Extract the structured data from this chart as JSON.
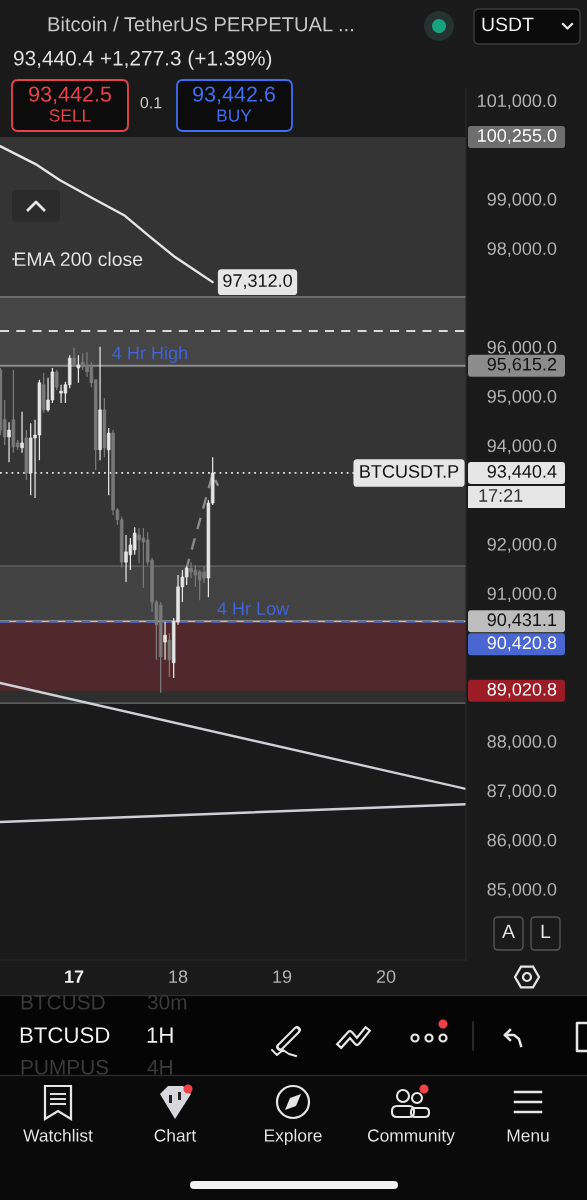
{
  "chart_data": {
    "type": "candlestick",
    "title": "Bitcoin / TetherUS PERPETUAL ...",
    "x": [
      16.292,
      16.333,
      16.375,
      16.417,
      16.458,
      16.5,
      16.542,
      16.583,
      16.625,
      16.667,
      16.708,
      16.75,
      16.792,
      16.833,
      16.875,
      16.917,
      16.958,
      17.0,
      17.042,
      17.083,
      17.125,
      17.167,
      17.208,
      17.25,
      17.292,
      17.333,
      17.375,
      17.417,
      17.458,
      17.5,
      17.542,
      17.583,
      17.625,
      17.667,
      17.708,
      17.75,
      17.792,
      17.833,
      17.875,
      17.917,
      17.958,
      18.0,
      18.042,
      18.083,
      18.125,
      18.167,
      18.208,
      18.25,
      18.292,
      18.333
    ],
    "ohlc": [
      [
        95530,
        95570,
        94210,
        94310
      ],
      [
        94520,
        94920,
        94010,
        94170
      ],
      [
        94170,
        94470,
        93660,
        94310
      ],
      [
        94520,
        95530,
        93850,
        93970
      ],
      [
        94050,
        94110,
        93910,
        93970
      ],
      [
        93950,
        94680,
        93850,
        94050
      ],
      [
        94150,
        94310,
        93300,
        93440
      ],
      [
        93440,
        94450,
        92990,
        94150
      ],
      [
        94150,
        94520,
        92930,
        94210
      ],
      [
        94210,
        95330,
        93700,
        95270
      ],
      [
        95230,
        95470,
        94660,
        94720
      ],
      [
        94720,
        95370,
        94680,
        94920
      ],
      [
        94920,
        95570,
        94860,
        95490
      ],
      [
        95490,
        95530,
        95120,
        95180
      ],
      [
        95060,
        95230,
        94860,
        95100
      ],
      [
        95060,
        95290,
        94860,
        95230
      ],
      [
        95230,
        95830,
        95160,
        95770
      ],
      [
        95770,
        95980,
        95590,
        95630
      ],
      [
        95570,
        95830,
        95270,
        95630
      ],
      [
        95690,
        95870,
        95530,
        95590
      ],
      [
        95630,
        95890,
        95390,
        95490
      ],
      [
        95590,
        95690,
        95180,
        95270
      ],
      [
        95330,
        95330,
        93500,
        93910
      ],
      [
        93910,
        96000,
        93700,
        94720
      ],
      [
        94720,
        94960,
        93760,
        93950
      ],
      [
        93910,
        94350,
        92990,
        94250
      ],
      [
        94250,
        94310,
        92590,
        92690
      ],
      [
        92690,
        92730,
        92390,
        92490
      ],
      [
        92490,
        92550,
        91530,
        91630
      ],
      [
        91630,
        92180,
        91230,
        91840
      ],
      [
        91780,
        92120,
        91470,
        91980
      ],
      [
        91880,
        92340,
        91780,
        92220
      ],
      [
        92180,
        92320,
        91610,
        92080
      ],
      [
        92120,
        92320,
        91110,
        92040
      ],
      [
        92080,
        92240,
        91570,
        91630
      ],
      [
        91670,
        91720,
        90620,
        90820
      ],
      [
        90820,
        90860,
        89650,
        90360
      ],
      [
        90760,
        90820,
        88980,
        89710
      ],
      [
        90010,
        90420,
        89650,
        90150
      ],
      [
        90050,
        90190,
        89300,
        89650
      ],
      [
        89590,
        90500,
        89280,
        90420
      ],
      [
        90420,
        91370,
        90360,
        91130
      ],
      [
        91130,
        91470,
        90820,
        91330
      ],
      [
        91330,
        91550,
        91170,
        91510
      ],
      [
        91510,
        91630,
        91310,
        91430
      ],
      [
        91470,
        91570,
        91130,
        91370
      ],
      [
        91430,
        91470,
        90860,
        91270
      ],
      [
        91430,
        91550,
        91210,
        91310
      ],
      [
        91310,
        92890,
        90920,
        92830
      ],
      [
        92830,
        93760,
        92790,
        93440.4
      ]
    ],
    "colors": [
      "#7a7a7a",
      "#7a7a7a",
      "#e6e6e6",
      "#7a7a7a",
      "#7a7a7a",
      "#e6e6e6",
      "#7a7a7a",
      "#e6e6e6",
      "#e6e6e6",
      "#e6e6e6",
      "#7a7a7a",
      "#e6e6e6",
      "#e6e6e6",
      "#7a7a7a",
      "#e6e6e6",
      "#e6e6e6",
      "#e6e6e6",
      "#7a7a7a",
      "#e6e6e6",
      "#7a7a7a",
      "#7a7a7a",
      "#7a7a7a",
      "#7a7a7a",
      "#e6e6e6",
      "#7a7a7a",
      "#e6e6e6",
      "#7a7a7a",
      "#7a7a7a",
      "#7a7a7a",
      "#e6e6e6",
      "#e6e6e6",
      "#e6e6e6",
      "#7a7a7a",
      "#7a7a7a",
      "#7a7a7a",
      "#7a7a7a",
      "#7a7a7a",
      "#7a7a7a",
      "#e6e6e6",
      "#7a7a7a",
      "#e6e6e6",
      "#e6e6e6",
      "#e6e6e6",
      "#e6e6e6",
      "#7a7a7a",
      "#7a7a7a",
      "#7a7a7a",
      "#7a7a7a",
      "#e6e6e6",
      "#e6e6e6"
    ],
    "series": [
      {
        "type": "line",
        "name": "EMA 200 close",
        "color": "#e6e6e6",
        "x": [
          16.288,
          16.644,
          16.865,
          17.192,
          17.481,
          17.731,
          17.971,
          18.212,
          18.333
        ],
        "values": [
          100070,
          99690,
          99380,
          99000,
          98670,
          98230,
          97820,
          97480,
          97312
        ],
        "value_labels": [
          null,
          null,
          null,
          null,
          null,
          null,
          null,
          null,
          "97,312.0"
        ]
      },
      {
        "type": "line",
        "color": "#cfcfd6",
        "x": [
          16.288,
          20.769
        ],
        "values": [
          89180,
          87030
        ]
      },
      {
        "type": "line",
        "color": "#cfcfd6",
        "x": [
          16.288,
          20.769
        ],
        "values": [
          86360,
          86720
        ]
      },
      {
        "type": "line",
        "color": "#8a8a8a",
        "line_style": "dashed",
        "x": [
          18.077,
          18.333,
          18.385
        ],
        "values": [
          91470,
          93420,
          93180
        ]
      }
    ],
    "xlim": [
      16.288,
      20.769
    ],
    "xticks": [
      17,
      18,
      19,
      20
    ],
    "ylim": [
      83560,
      101250
    ],
    "yticks": [
      {
        "value": 101000,
        "label": "101,000.0"
      },
      {
        "value": 99000,
        "label": "99,000.0"
      },
      {
        "value": 98000,
        "label": "98,000.0"
      },
      {
        "value": 96000,
        "label": "96,000.0"
      },
      {
        "value": 95000,
        "label": "95,000.0"
      },
      {
        "value": 94000,
        "label": "94,000.0"
      },
      {
        "value": 92000,
        "label": "92,000.0"
      },
      {
        "value": 91000,
        "label": "91,000.0"
      },
      {
        "value": 88000,
        "label": "88,000.0"
      },
      {
        "value": 87000,
        "label": "87,000.0"
      },
      {
        "value": 86000,
        "label": "86,000.0"
      },
      {
        "value": 85000,
        "label": "85,000.0"
      }
    ],
    "bands": [
      {
        "axis": "y",
        "from": 95615.2,
        "to": 97010,
        "color": "#6a6a6a"
      },
      {
        "axis": "y",
        "from": 88770,
        "to": 91550,
        "color": "#5a5a5a"
      },
      {
        "axis": "y",
        "from": 90420.8,
        "to": 100255,
        "label": "100,255.0",
        "color": "#6e6e6e"
      },
      {
        "axis": "y",
        "from": 90420.8,
        "to": 89020.8,
        "label": "89,020.8",
        "color": "#9b1c24"
      }
    ],
    "ref_lines": [
      {
        "axis": "y",
        "value": 97010,
        "color": "#6a6a6a"
      },
      {
        "axis": "y",
        "value": 96320,
        "color": "#d9d9d9",
        "line_style": "dashed"
      },
      {
        "axis": "y",
        "value": 95615.2,
        "label": "95,615.2",
        "color": "#8c8c8c"
      },
      {
        "axis": "y",
        "value": 93440.4,
        "label": "93,440.4",
        "color": "#e6e6e6",
        "line_style": "dotted"
      },
      {
        "axis": "y",
        "value": 91550,
        "color": "#5a5a5a"
      },
      {
        "axis": "y",
        "value": 90431.1,
        "label": "90,431.1",
        "color": "#bdbdbd"
      },
      {
        "axis": "y",
        "value": 90420.8,
        "label": "90,420.8",
        "color": "#4a66d0",
        "line_style": "dashed"
      },
      {
        "axis": "y",
        "value": 88770,
        "color": "#5a5a5a"
      }
    ],
    "annotations": [
      "93,440.4 +1,277.3 (+1.39%)",
      "93,442.5",
      "SELL",
      "0.1",
      "93,442.6",
      "BUY",
      "USDT",
      {
        "text": "4 Hr High",
        "x": 17.73,
        "y": 95615.2
      },
      {
        "text": "4 Hr Low",
        "x": 18.721,
        "y": 90431.1
      },
      {
        "text": "BTCUSDT.P",
        "x": 20.221,
        "y": 93440.4
      },
      "17:21",
      "A",
      "L",
      "BTCUSD",
      "30m",
      "BTCUSD",
      "1H",
      "PUMPUS",
      "4H",
      "Watchlist",
      "Chart",
      "Explore",
      "Community",
      "Menu"
    ],
    "legend": "top left"
  }
}
